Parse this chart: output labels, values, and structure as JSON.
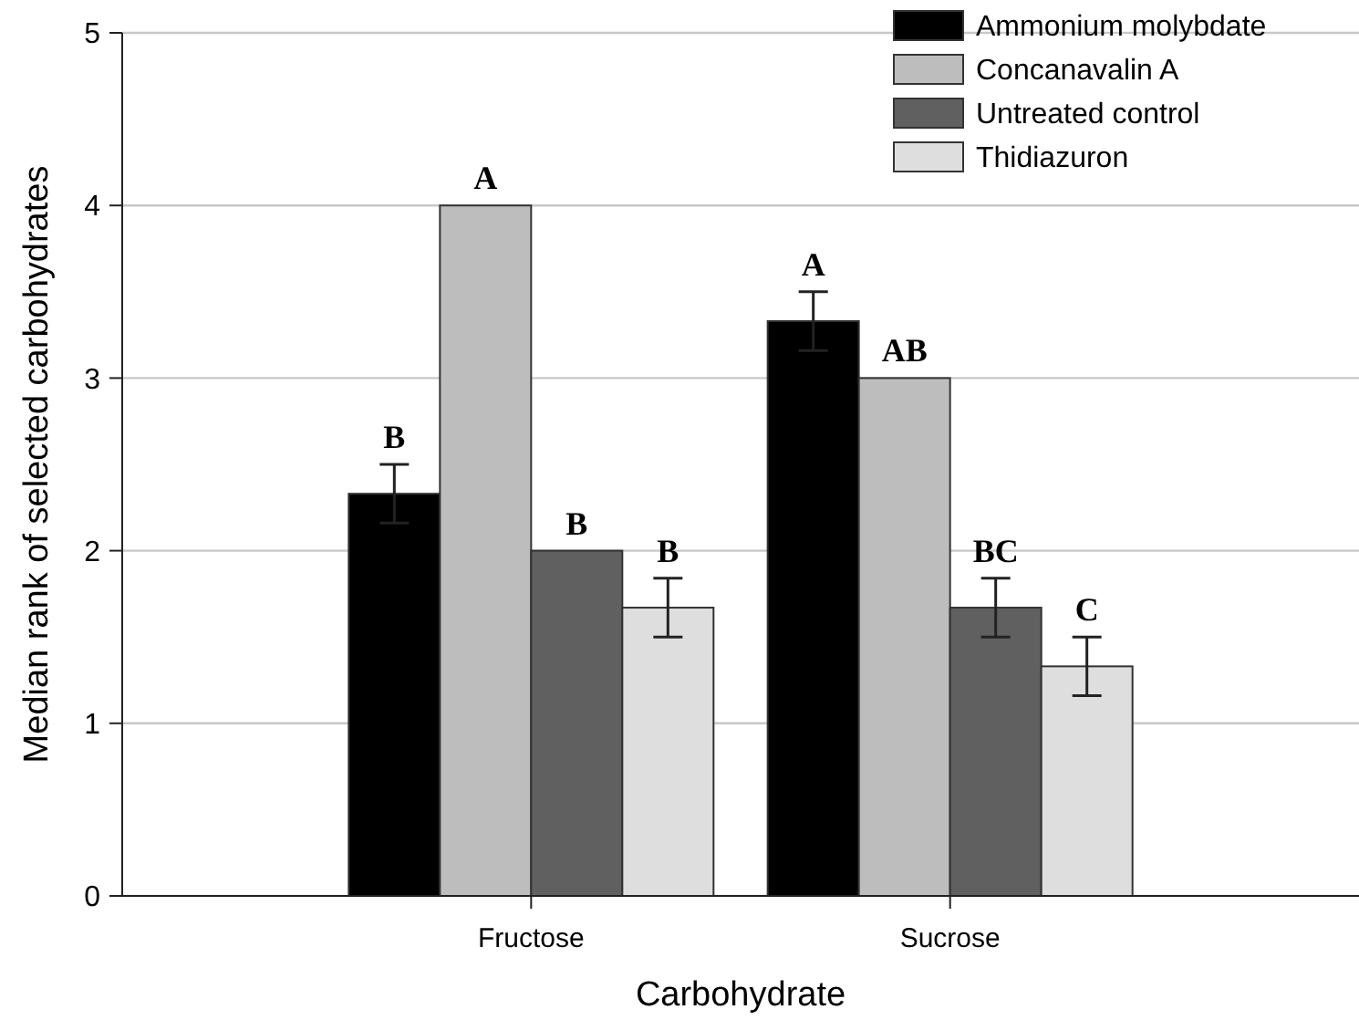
{
  "chart_data": {
    "type": "bar",
    "xlabel": "Carbohydrate",
    "ylabel": "Median rank of selected carbohydrates",
    "categories": [
      "Fructose",
      "Sucrose"
    ],
    "series": [
      {
        "name": "Ammonium molybdate",
        "color": "#000000",
        "values": [
          2.33,
          3.33
        ],
        "errors": [
          0.17,
          0.17
        ],
        "value_labels": [
          "B",
          "A"
        ]
      },
      {
        "name": "Concanavalin A",
        "color": "#bdbdbd",
        "values": [
          4,
          3
        ],
        "errors": [
          null,
          null
        ],
        "value_labels": [
          "A",
          "AB"
        ]
      },
      {
        "name": "Untreated control",
        "color": "#606060",
        "values": [
          2,
          1.67
        ],
        "errors": [
          null,
          0.17
        ],
        "value_labels": [
          "B",
          "BC"
        ]
      },
      {
        "name": "Thidiazuron",
        "color": "#dedede",
        "values": [
          1.67,
          1.33
        ],
        "errors": [
          0.17,
          0.17
        ],
        "value_labels": [
          "B",
          "C"
        ]
      }
    ],
    "ylim": [
      0,
      5
    ],
    "yticks": [
      0,
      1,
      2,
      3,
      4,
      5
    ],
    "grid": "y",
    "legend": "top right"
  }
}
